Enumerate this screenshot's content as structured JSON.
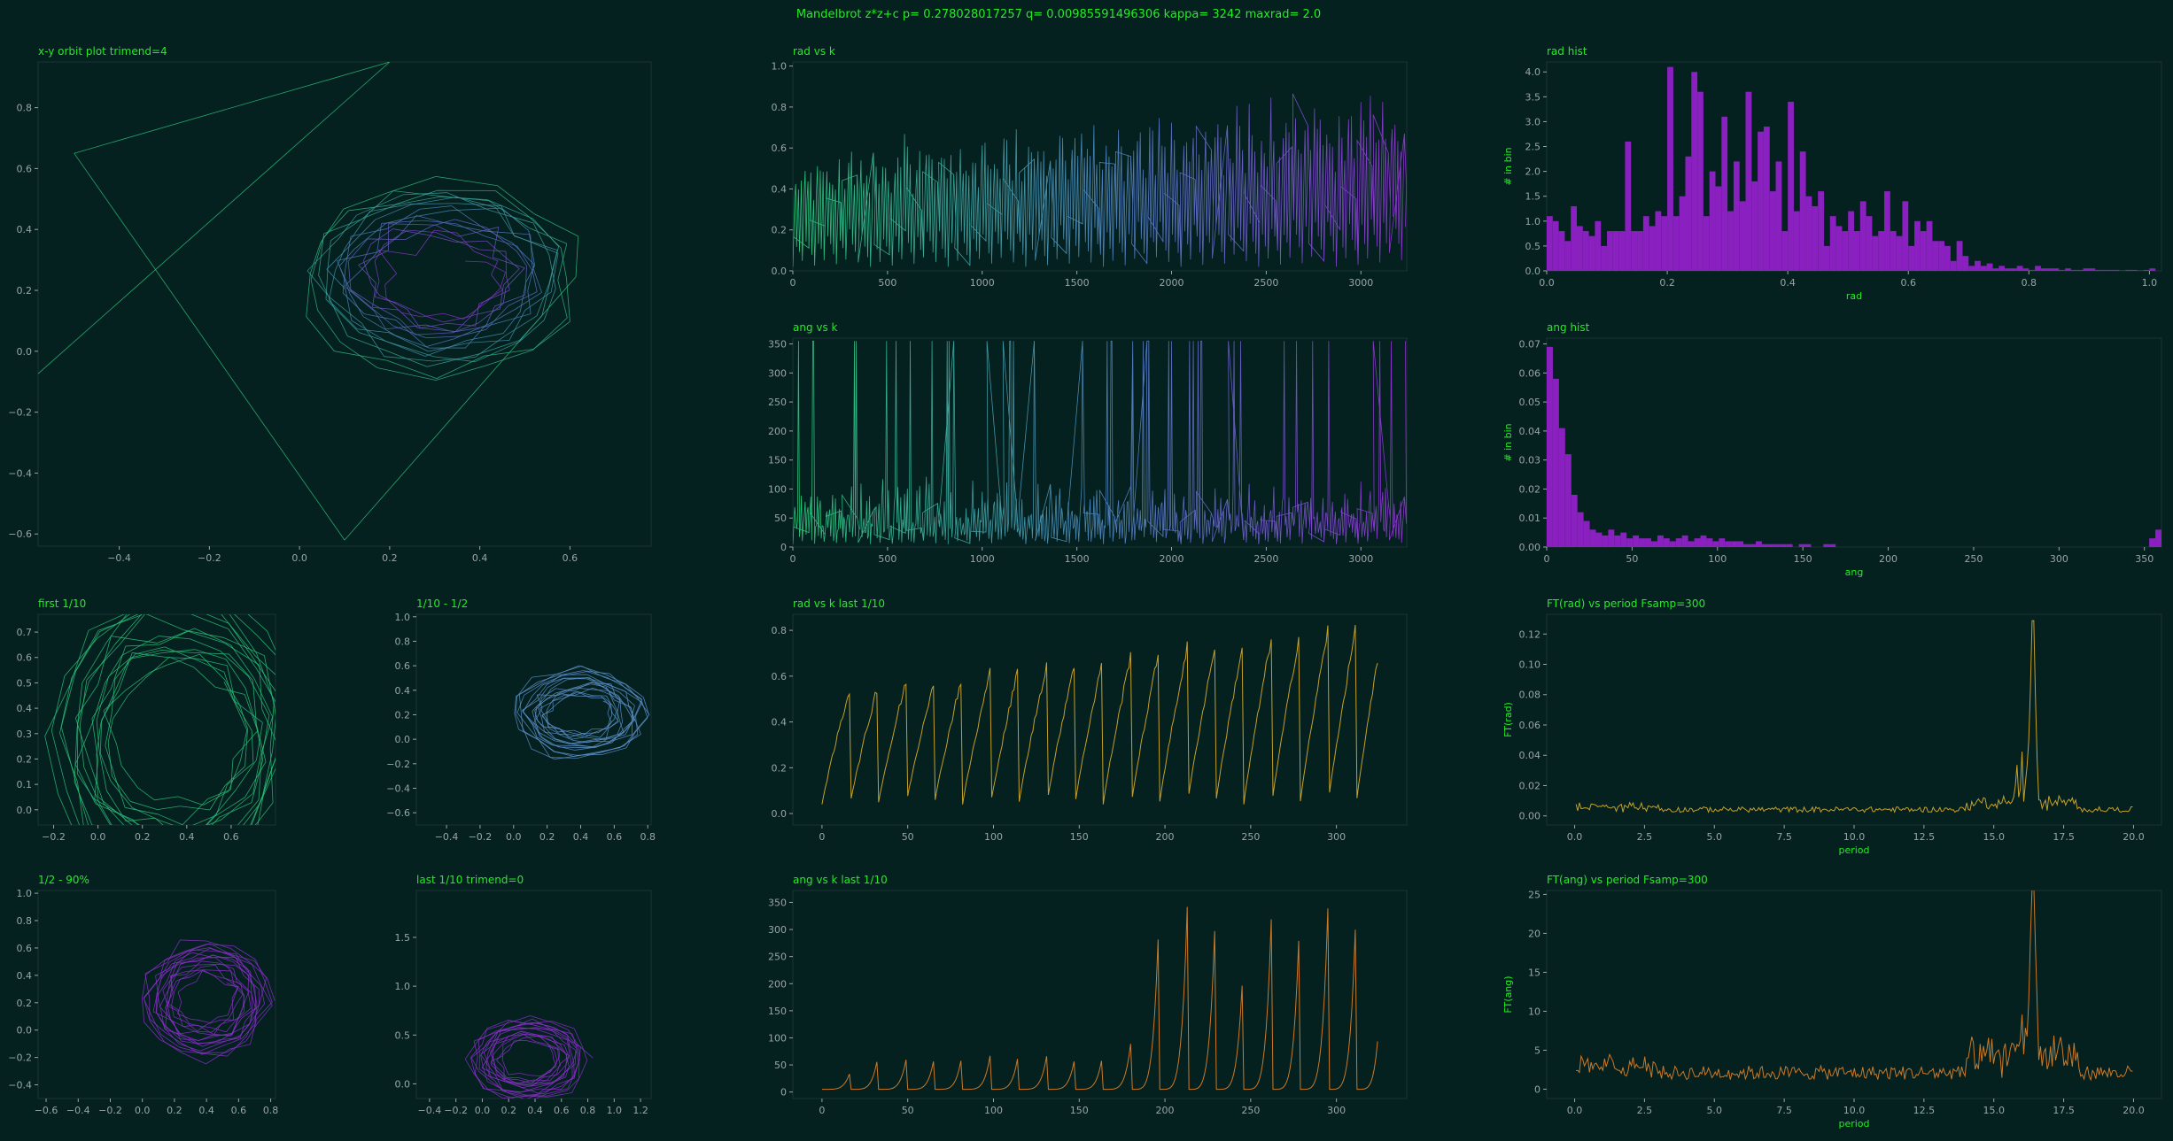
{
  "figure_title": "Mandelbrot z*z+c  p= 0.278028017257  q= 0.00985591496306  kappa= 3242  maxrad= 2.0",
  "colors": {
    "background": "#04201f",
    "title_text": "#22ee22",
    "tick_text": "#9aa6a6",
    "hist": "#8a20bf",
    "rad_last": "#c6a02a",
    "ang_last": "#cc7a28",
    "viridis_start": "#2ac07a",
    "viridis_mid": "#4a80b8",
    "viridis_end": "#8a30c8"
  },
  "chart_data": [
    {
      "id": "xy",
      "type": "line",
      "title": "x-y orbit plot  trimend=4",
      "xlabel": "",
      "ylabel": "",
      "xlim": [
        -0.58,
        0.78
      ],
      "ylim": [
        -0.64,
        0.95
      ],
      "xticks": [
        -0.4,
        -0.2,
        0.0,
        0.2,
        0.4,
        0.6
      ],
      "yticks": [
        -0.6,
        -0.4,
        -0.2,
        0.0,
        0.2,
        0.4,
        0.6,
        0.8
      ],
      "xtick_labels": [
        "−0.4",
        "−0.2",
        "0.0",
        "0.2",
        "0.4",
        "0.6"
      ],
      "ytick_labels": [
        "−0.6",
        "−0.4",
        "−0.2",
        "0.0",
        "0.2",
        "0.4",
        "0.6",
        "0.8"
      ],
      "orbit": {
        "center": [
          0.36,
          0.24
        ],
        "inner_hole": [
          0.42,
          0.18,
          0.08,
          0.06
        ],
        "outer": [
          0.26,
          0.36,
          0.18,
          0.26
        ],
        "color": "gradient"
      }
    },
    {
      "id": "radk",
      "type": "line",
      "title": "rad vs k",
      "xlim": [
        0,
        3242
      ],
      "ylim": [
        0,
        1.02
      ],
      "xticks": [
        0,
        500,
        1000,
        1500,
        2000,
        2500,
        3000
      ],
      "yticks": [
        0.0,
        0.2,
        0.4,
        0.6,
        0.8,
        1.0
      ],
      "xtick_labels": [
        "0",
        "500",
        "1000",
        "1500",
        "2000",
        "2500",
        "3000"
      ],
      "ytick_labels": [
        "0.0",
        "0.2",
        "0.4",
        "0.6",
        "0.8",
        "1.0"
      ],
      "series": {
        "kind": "spiky",
        "n": 3242,
        "period": 16.4,
        "amp_range": [
          0.55,
          0.85
        ],
        "color": "gradient"
      }
    },
    {
      "id": "radhist",
      "type": "bar",
      "title": "rad hist",
      "xlabel": "rad",
      "ylabel": "# in bin",
      "xlim": [
        0,
        1.02
      ],
      "ylim": [
        0,
        4.2
      ],
      "xticks": [
        0.0,
        0.2,
        0.4,
        0.6,
        0.8,
        1.0
      ],
      "yticks": [
        0.0,
        0.5,
        1.0,
        1.5,
        2.0,
        2.5,
        3.0,
        3.5,
        4.0
      ],
      "xtick_labels": [
        "0.0",
        "0.2",
        "0.4",
        "0.6",
        "0.8",
        "1.0"
      ],
      "ytick_labels": [
        "0.0",
        "0.5",
        "1.0",
        "1.5",
        "2.0",
        "2.5",
        "3.0",
        "3.5",
        "4.0"
      ],
      "bin_width": 0.01,
      "values": [
        1.1,
        1.0,
        0.8,
        0.6,
        1.3,
        0.9,
        0.8,
        0.7,
        1.0,
        0.5,
        0.8,
        0.8,
        0.8,
        2.6,
        0.8,
        0.8,
        1.1,
        0.9,
        1.2,
        1.1,
        4.1,
        1.1,
        1.5,
        2.3,
        4.0,
        3.6,
        1.1,
        2.0,
        1.7,
        3.1,
        1.2,
        2.2,
        1.4,
        3.6,
        1.8,
        2.8,
        2.9,
        1.6,
        2.2,
        0.8,
        3.4,
        1.2,
        2.4,
        1.5,
        1.3,
        1.6,
        0.5,
        1.1,
        0.9,
        0.8,
        1.2,
        0.8,
        1.4,
        1.1,
        0.7,
        0.8,
        1.6,
        0.8,
        0.7,
        1.4,
        0.5,
        1.0,
        0.8,
        1.0,
        0.6,
        0.6,
        0.5,
        0.2,
        0.6,
        0.3,
        0.1,
        0.2,
        0.1,
        0.15,
        0.05,
        0.1,
        0.05,
        0.05,
        0.1,
        0.05,
        0.02,
        0.1,
        0.05,
        0.05,
        0.05,
        0.02,
        0.05,
        0.02,
        0.02,
        0.05,
        0.05,
        0.02,
        0.02,
        0.02,
        0.02,
        0.01,
        0.02,
        0.02,
        0.01,
        0.02,
        0.05
      ]
    },
    {
      "id": "angk",
      "type": "line",
      "title": "ang vs k",
      "xlim": [
        0,
        3242
      ],
      "ylim": [
        0,
        360
      ],
      "xticks": [
        0,
        500,
        1000,
        1500,
        2000,
        2500,
        3000
      ],
      "yticks": [
        0,
        50,
        100,
        150,
        200,
        250,
        300,
        350
      ],
      "xtick_labels": [
        "0",
        "500",
        "1000",
        "1500",
        "2000",
        "2500",
        "3000"
      ],
      "ytick_labels": [
        "0",
        "50",
        "100",
        "150",
        "200",
        "250",
        "300",
        "350"
      ],
      "series": {
        "kind": "spiky-ang",
        "n": 3242,
        "period": 16.4,
        "color": "gradient"
      }
    },
    {
      "id": "anghist",
      "type": "bar",
      "title": "ang hist",
      "xlabel": "ang",
      "ylabel": "# in bin",
      "xlim": [
        0,
        360
      ],
      "ylim": [
        0,
        0.072
      ],
      "xticks": [
        0,
        50,
        100,
        150,
        200,
        250,
        300,
        350
      ],
      "yticks": [
        0.0,
        0.01,
        0.02,
        0.03,
        0.04,
        0.05,
        0.06,
        0.07
      ],
      "xtick_labels": [
        "0",
        "50",
        "100",
        "150",
        "200",
        "250",
        "300",
        "350"
      ],
      "ytick_labels": [
        "0.00",
        "0.01",
        "0.02",
        "0.03",
        "0.04",
        "0.05",
        "0.06",
        "0.07"
      ],
      "bin_width": 3.6,
      "values": [
        0.069,
        0.058,
        0.041,
        0.032,
        0.018,
        0.012,
        0.009,
        0.006,
        0.005,
        0.004,
        0.006,
        0.004,
        0.005,
        0.003,
        0.004,
        0.003,
        0.003,
        0.002,
        0.004,
        0.003,
        0.002,
        0.003,
        0.004,
        0.002,
        0.003,
        0.004,
        0.003,
        0.002,
        0.003,
        0.002,
        0.002,
        0.002,
        0.001,
        0.001,
        0.002,
        0.001,
        0.001,
        0.001,
        0.001,
        0.001,
        0.0,
        0.001,
        0.001,
        0.0,
        0.0,
        0.001,
        0.001,
        0.0,
        0.0,
        0.0,
        0.0,
        0.0,
        0.0,
        0.0,
        0.0,
        0.0,
        0.0,
        0.0,
        0.0,
        0.0,
        0.0,
        0.0,
        0.0,
        0.0,
        0.0,
        0.0,
        0.0,
        0.0,
        0.0,
        0.0,
        0.0,
        0.0,
        0.0,
        0.0,
        0.0,
        0.0,
        0.0,
        0.0,
        0.0,
        0.0,
        0.0,
        0.0,
        0.0,
        0.0,
        0.0,
        0.0,
        0.0,
        0.0,
        0.0,
        0.0,
        0.0,
        0.0,
        0.0,
        0.0,
        0.0,
        0.0,
        0.0,
        0.0,
        0.003,
        0.006
      ]
    },
    {
      "id": "first",
      "type": "line",
      "title": "first 1/10",
      "xlim": [
        -0.27,
        0.8
      ],
      "ylim": [
        -0.06,
        0.77
      ],
      "xticks": [
        -0.2,
        0.0,
        0.2,
        0.4,
        0.6
      ],
      "yticks": [
        0.0,
        0.1,
        0.2,
        0.3,
        0.4,
        0.5,
        0.6,
        0.7
      ],
      "xtick_labels": [
        "−0.2",
        "0.0",
        "0.2",
        "0.4",
        "0.6"
      ],
      "ytick_labels": [
        "0.0",
        "0.1",
        "0.2",
        "0.3",
        "0.4",
        "0.5",
        "0.6",
        "0.7"
      ],
      "orbit": {
        "center": [
          0.4,
          0.28
        ],
        "inner_hole": [
          0.35,
          0.3,
          0.22,
          0.22
        ],
        "outer": [
          0.2,
          0.32,
          0.22,
          0.32
        ],
        "color": "#2ac07a"
      }
    },
    {
      "id": "tenhalf",
      "type": "line",
      "title": "1/10 - 1/2",
      "xlim": [
        -0.58,
        0.82
      ],
      "ylim": [
        -0.7,
        1.02
      ],
      "xticks": [
        -0.4,
        -0.2,
        0.0,
        0.2,
        0.4,
        0.6,
        0.8
      ],
      "yticks": [
        -0.6,
        -0.4,
        -0.2,
        0.0,
        0.2,
        0.4,
        0.6,
        0.8,
        1.0
      ],
      "xtick_labels": [
        "−0.4",
        "−0.2",
        "0.0",
        "0.2",
        "0.4",
        "0.6",
        "0.8"
      ],
      "ytick_labels": [
        "−0.6",
        "−0.4",
        "−0.2",
        "0.0",
        "0.2",
        "0.4",
        "0.6",
        "0.8",
        "1.0"
      ],
      "orbit": {
        "center": [
          0.45,
          0.2
        ],
        "inner_hole": [
          0.48,
          0.18,
          0.12,
          0.08
        ],
        "outer": [
          0.28,
          0.32,
          0.22,
          0.3
        ],
        "color": "#5a90c8"
      }
    },
    {
      "id": "radlast",
      "type": "line",
      "title": "rad vs k last 1/10",
      "xlim": [
        -17,
        341
      ],
      "ylim": [
        -0.05,
        0.87
      ],
      "xticks": [
        0,
        50,
        100,
        150,
        200,
        250,
        300
      ],
      "yticks": [
        0.0,
        0.2,
        0.4,
        0.6,
        0.8
      ],
      "xtick_labels": [
        "0",
        "50",
        "100",
        "150",
        "200",
        "250",
        "300"
      ],
      "ytick_labels": [
        "0.0",
        "0.2",
        "0.4",
        "0.6",
        "0.8"
      ],
      "series": {
        "kind": "saw",
        "n": 324,
        "period": 16.4,
        "color": "#c6a02a"
      }
    },
    {
      "id": "ftrad",
      "type": "line",
      "title": "FT(rad) vs period   Fsamp=300",
      "xlabel": "period",
      "ylabel": "FT(rad)",
      "xlim": [
        -1,
        21
      ],
      "ylim": [
        -0.006,
        0.133
      ],
      "xticks": [
        0.0,
        2.5,
        5.0,
        7.5,
        10.0,
        12.5,
        15.0,
        17.5,
        20.0
      ],
      "yticks": [
        0.0,
        0.02,
        0.04,
        0.06,
        0.08,
        0.1,
        0.12
      ],
      "xtick_labels": [
        "0.0",
        "2.5",
        "5.0",
        "7.5",
        "10.0",
        "12.5",
        "15.0",
        "17.5",
        "20.0"
      ],
      "ytick_labels": [
        "0.00",
        "0.02",
        "0.04",
        "0.06",
        "0.08",
        "0.10",
        "0.12"
      ],
      "series": {
        "kind": "ft",
        "peak_x": 16.4,
        "peak_y": 0.128,
        "base": 0.004,
        "color": "#c6a02a"
      }
    },
    {
      "id": "halfninety",
      "type": "line",
      "title": "1/2 - 90%",
      "xlim": [
        -0.65,
        0.83
      ],
      "ylim": [
        -0.5,
        1.02
      ],
      "xticks": [
        -0.6,
        -0.4,
        -0.2,
        0.0,
        0.2,
        0.4,
        0.6,
        0.8
      ],
      "yticks": [
        -0.4,
        -0.2,
        0.0,
        0.2,
        0.4,
        0.6,
        0.8,
        1.0
      ],
      "xtick_labels": [
        "−0.6",
        "−0.4",
        "−0.2",
        "0.0",
        "0.2",
        "0.4",
        "0.6",
        "0.8"
      ],
      "ytick_labels": [
        "−0.4",
        "−0.2",
        "0.0",
        "0.2",
        "0.4",
        "0.6",
        "0.8",
        "1.0"
      ],
      "orbit": {
        "center": [
          0.45,
          0.22
        ],
        "inner_hole": [
          0.42,
          0.25,
          0.12,
          0.12
        ],
        "outer": [
          0.28,
          0.32,
          0.22,
          0.3
        ],
        "color": "#8a30c8"
      }
    },
    {
      "id": "lasttenth",
      "type": "line",
      "title": "last 1/10  trimend=0",
      "xlim": [
        -0.5,
        1.28
      ],
      "ylim": [
        -0.15,
        1.98
      ],
      "xticks": [
        -0.4,
        -0.2,
        0.0,
        0.2,
        0.4,
        0.6,
        0.8,
        1.0,
        1.2
      ],
      "yticks": [
        0.0,
        0.5,
        1.0,
        1.5
      ],
      "xtick_labels": [
        "−0.4",
        "−0.2",
        "0.0",
        "0.2",
        "0.4",
        "0.6",
        "0.8",
        "1.0",
        "1.2"
      ],
      "ytick_labels": [
        "0.0",
        "0.5",
        "1.0",
        "1.5"
      ],
      "orbit": {
        "center": [
          0.4,
          0.25
        ],
        "inner_hole": [
          0.45,
          0.22,
          0.15,
          0.12
        ],
        "outer": [
          0.26,
          0.3,
          0.22,
          0.3
        ],
        "color": "#8a30c8"
      }
    },
    {
      "id": "anglast",
      "type": "line",
      "title": "ang vs k last 1/10",
      "xlim": [
        -17,
        341
      ],
      "ylim": [
        -12,
        372
      ],
      "xticks": [
        0,
        50,
        100,
        150,
        200,
        250,
        300
      ],
      "yticks": [
        0,
        50,
        100,
        150,
        200,
        250,
        300,
        350
      ],
      "xtick_labels": [
        "0",
        "50",
        "100",
        "150",
        "200",
        "250",
        "300"
      ],
      "ytick_labels": [
        "0",
        "50",
        "100",
        "150",
        "200",
        "250",
        "300",
        "350"
      ],
      "series": {
        "kind": "angspikes",
        "n": 324,
        "period": 16.4,
        "color": "#cc7a28",
        "peaks": [
          32,
          65,
          58,
          62,
          72,
          70,
          72,
          65,
          62,
          72,
          95,
          355,
          358,
          352,
          262,
          355,
          352,
          355,
          355,
          358
        ]
      }
    },
    {
      "id": "ftang",
      "type": "line",
      "title": "FT(ang) vs period   Fsamp=300",
      "xlabel": "period",
      "ylabel": "FT(ang)",
      "xlim": [
        -1,
        21
      ],
      "ylim": [
        -1.2,
        25.5
      ],
      "xticks": [
        0.0,
        2.5,
        5.0,
        7.5,
        10.0,
        12.5,
        15.0,
        17.5,
        20.0
      ],
      "yticks": [
        0,
        5,
        10,
        15,
        20,
        25
      ],
      "xtick_labels": [
        "0.0",
        "2.5",
        "5.0",
        "7.5",
        "10.0",
        "12.5",
        "15.0",
        "17.5",
        "20.0"
      ],
      "ytick_labels": [
        "0",
        "5",
        "10",
        "15",
        "20",
        "25"
      ],
      "series": {
        "kind": "ft",
        "peak_x": 16.4,
        "peak_y": 23.5,
        "base": 2.0,
        "color": "#cc7a28"
      }
    }
  ]
}
